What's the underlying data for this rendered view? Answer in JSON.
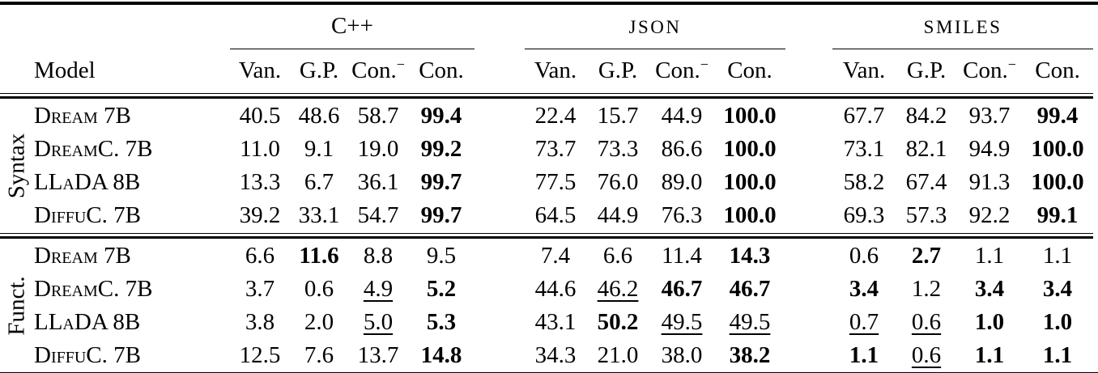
{
  "table": {
    "model_header": "Model",
    "groups": [
      {
        "label": "C++",
        "acronym": false
      },
      {
        "label": "JSON",
        "acronym": true
      },
      {
        "label": "SMILES",
        "acronym": true
      }
    ],
    "sub_headers": [
      {
        "label": "Van."
      },
      {
        "label": "G.P."
      },
      {
        "label": "Con.",
        "sup": "−"
      },
      {
        "label": "Con."
      }
    ],
    "sections": [
      {
        "label": "Syntax",
        "rows": [
          {
            "model": "Dream 7B",
            "values": [
              {
                "v": "40.5"
              },
              {
                "v": "48.6"
              },
              {
                "v": "58.7"
              },
              {
                "v": "99.4",
                "f": "b"
              },
              {
                "v": "22.4"
              },
              {
                "v": "15.7"
              },
              {
                "v": "44.9"
              },
              {
                "v": "100.0",
                "f": "b"
              },
              {
                "v": "67.7"
              },
              {
                "v": "84.2"
              },
              {
                "v": "93.7"
              },
              {
                "v": "99.4",
                "f": "b"
              }
            ]
          },
          {
            "model": "DreamC. 7B",
            "values": [
              {
                "v": "11.0"
              },
              {
                "v": "9.1"
              },
              {
                "v": "19.0"
              },
              {
                "v": "99.2",
                "f": "b"
              },
              {
                "v": "73.7"
              },
              {
                "v": "73.3"
              },
              {
                "v": "86.6"
              },
              {
                "v": "100.0",
                "f": "b"
              },
              {
                "v": "73.1"
              },
              {
                "v": "82.1"
              },
              {
                "v": "94.9"
              },
              {
                "v": "100.0",
                "f": "b"
              }
            ]
          },
          {
            "model": "LLaDA 8B",
            "values": [
              {
                "v": "13.3"
              },
              {
                "v": "6.7"
              },
              {
                "v": "36.1"
              },
              {
                "v": "99.7",
                "f": "b"
              },
              {
                "v": "77.5"
              },
              {
                "v": "76.0"
              },
              {
                "v": "89.0"
              },
              {
                "v": "100.0",
                "f": "b"
              },
              {
                "v": "58.2"
              },
              {
                "v": "67.4"
              },
              {
                "v": "91.3"
              },
              {
                "v": "100.0",
                "f": "b"
              }
            ]
          },
          {
            "model": "DiffuC. 7B",
            "values": [
              {
                "v": "39.2"
              },
              {
                "v": "33.1"
              },
              {
                "v": "54.7"
              },
              {
                "v": "99.7",
                "f": "b"
              },
              {
                "v": "64.5"
              },
              {
                "v": "44.9"
              },
              {
                "v": "76.3"
              },
              {
                "v": "100.0",
                "f": "b"
              },
              {
                "v": "69.3"
              },
              {
                "v": "57.3"
              },
              {
                "v": "92.2"
              },
              {
                "v": "99.1",
                "f": "b"
              }
            ]
          }
        ]
      },
      {
        "label": "Funct.",
        "rows": [
          {
            "model": "Dream 7B",
            "values": [
              {
                "v": "6.6"
              },
              {
                "v": "11.6",
                "f": "b"
              },
              {
                "v": "8.8"
              },
              {
                "v": "9.5"
              },
              {
                "v": "7.4"
              },
              {
                "v": "6.6"
              },
              {
                "v": "11.4"
              },
              {
                "v": "14.3",
                "f": "b"
              },
              {
                "v": "0.6"
              },
              {
                "v": "2.7",
                "f": "b"
              },
              {
                "v": "1.1"
              },
              {
                "v": "1.1"
              }
            ]
          },
          {
            "model": "DreamC. 7B",
            "values": [
              {
                "v": "3.7"
              },
              {
                "v": "0.6"
              },
              {
                "v": "4.9",
                "f": "u"
              },
              {
                "v": "5.2",
                "f": "b"
              },
              {
                "v": "44.6"
              },
              {
                "v": "46.2",
                "f": "u"
              },
              {
                "v": "46.7",
                "f": "b"
              },
              {
                "v": "46.7",
                "f": "b"
              },
              {
                "v": "3.4",
                "f": "b"
              },
              {
                "v": "1.2"
              },
              {
                "v": "3.4",
                "f": "b"
              },
              {
                "v": "3.4",
                "f": "b"
              }
            ]
          },
          {
            "model": "LLaDA 8B",
            "values": [
              {
                "v": "3.8"
              },
              {
                "v": "2.0"
              },
              {
                "v": "5.0",
                "f": "u"
              },
              {
                "v": "5.3",
                "f": "b"
              },
              {
                "v": "43.1"
              },
              {
                "v": "50.2",
                "f": "b"
              },
              {
                "v": "49.5",
                "f": "u"
              },
              {
                "v": "49.5",
                "f": "u"
              },
              {
                "v": "0.7",
                "f": "u"
              },
              {
                "v": "0.6",
                "f": "u"
              },
              {
                "v": "1.0",
                "f": "b"
              },
              {
                "v": "1.0",
                "f": "b"
              }
            ]
          },
          {
            "model": "DiffuC. 7B",
            "values": [
              {
                "v": "12.5"
              },
              {
                "v": "7.6"
              },
              {
                "v": "13.7"
              },
              {
                "v": "14.8",
                "f": "b"
              },
              {
                "v": "34.3"
              },
              {
                "v": "21.0"
              },
              {
                "v": "38.0"
              },
              {
                "v": "38.2",
                "f": "b"
              },
              {
                "v": "1.1",
                "f": "b"
              },
              {
                "v": "0.6",
                "f": "u"
              },
              {
                "v": "1.1",
                "f": "b"
              },
              {
                "v": "1.1",
                "f": "b"
              }
            ]
          }
        ]
      }
    ],
    "colors": {
      "text": "#000000",
      "background": "#ffffff"
    }
  }
}
